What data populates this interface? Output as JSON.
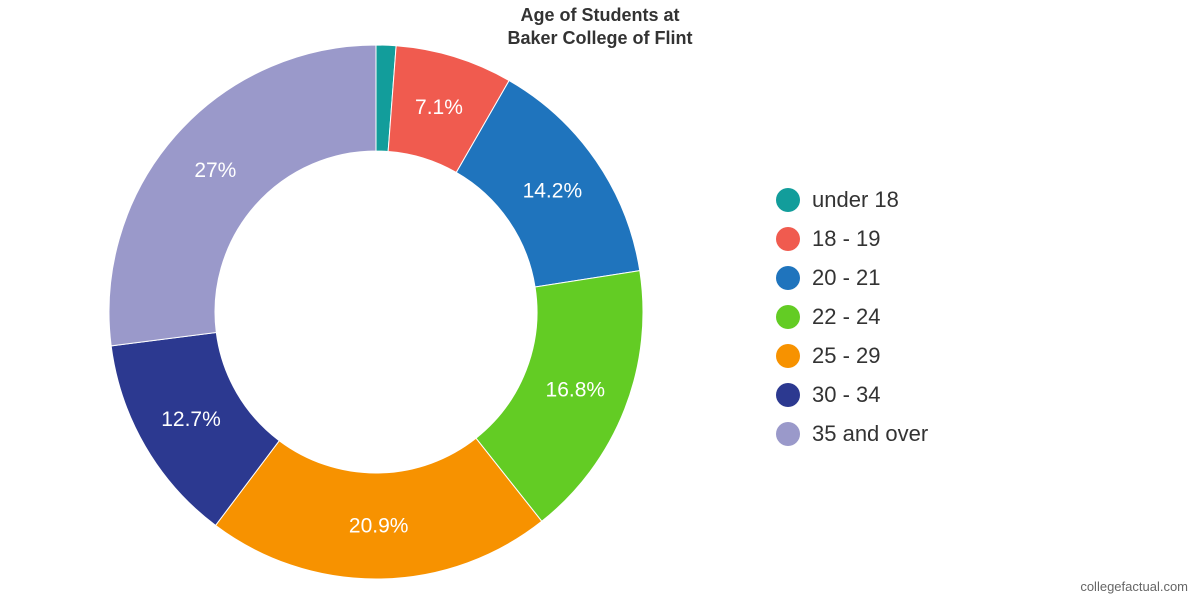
{
  "chart_data": {
    "type": "pie",
    "title": "Age of Students at",
    "subtitle": "Baker College of Flint",
    "donut": true,
    "legend_position": "right",
    "categories": [
      "under 18",
      "18 - 19",
      "20 - 21",
      "22 - 24",
      "25 - 29",
      "30 - 34",
      "35 and over"
    ],
    "values": [
      1.2,
      7.1,
      14.2,
      16.8,
      20.9,
      12.7,
      27.0
    ],
    "labels": [
      "",
      "7.1%",
      "14.2%",
      "16.8%",
      "20.9%",
      "12.7%",
      "27%"
    ],
    "colors": [
      "#129d9b",
      "#f05b4f",
      "#1f74bd",
      "#63cc24",
      "#f79200",
      "#2c3990",
      "#9a99ca"
    ]
  },
  "footer": {
    "source": "collegefactual.com"
  }
}
